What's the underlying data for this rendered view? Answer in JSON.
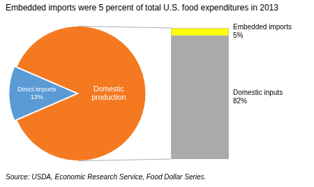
{
  "chart_data": [
    {
      "type": "pie",
      "title": "Embedded imports were 5 percent of total U.S. food expenditures in 2013",
      "categories": [
        "Direct imports\n13%",
        "Domestic\nproduction"
      ],
      "values": [
        13,
        87
      ],
      "colors": [
        "#5b9bd5",
        "#f47920"
      ],
      "annotations": [
        "Source: USDA, Economic Research Service, Food Dollar Series."
      ]
    },
    {
      "type": "bar",
      "stacked": true,
      "categories": [
        null
      ],
      "series": [
        {
          "name": "Domestic inputs\n82%",
          "color": "#aaaaaa",
          "values": [
            82
          ]
        },
        {
          "name": "Embedded imports\n5%",
          "color": "#ffff00",
          "values": [
            5
          ]
        }
      ],
      "ylim": [
        0,
        87
      ],
      "tick_labels": false
    }
  ]
}
